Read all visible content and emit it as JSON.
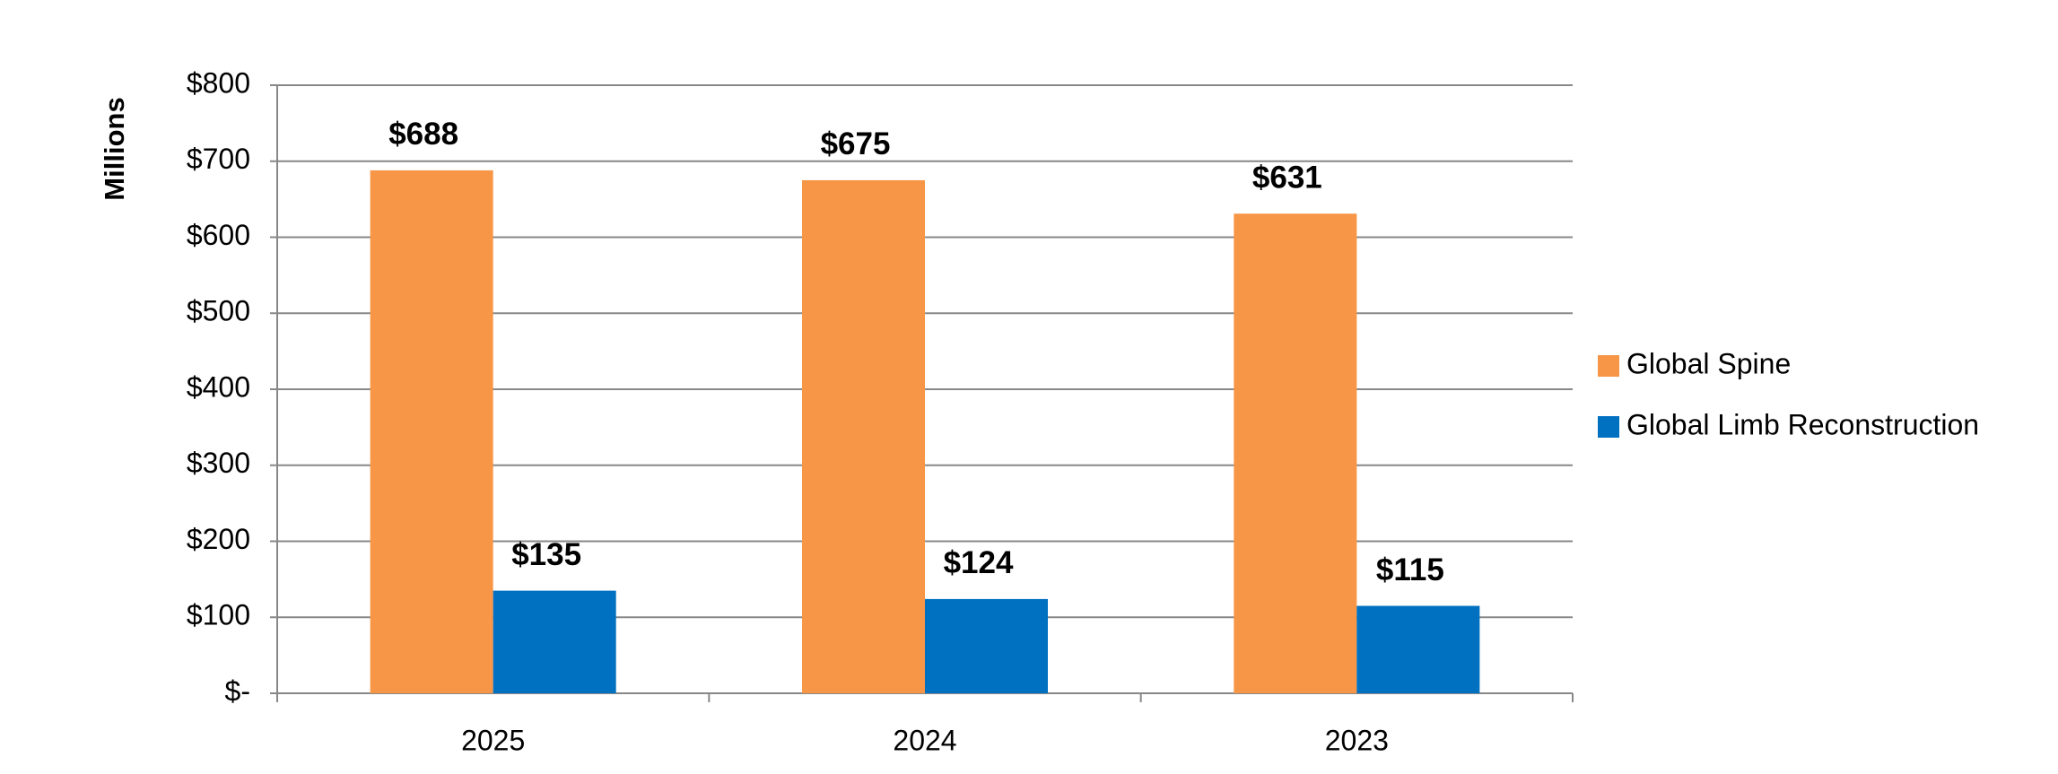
{
  "chart_data": {
    "type": "bar",
    "y_label": "Millions",
    "categories": [
      "2025",
      "2024",
      "2023"
    ],
    "series": [
      {
        "name": "Global Spine",
        "color": "#f79646",
        "values": [
          688,
          675,
          631
        ],
        "value_labels": [
          "$688",
          "$675",
          "$631"
        ]
      },
      {
        "name": "Global Limb Reconstruction",
        "color": "#0070c0",
        "values": [
          135,
          124,
          115
        ],
        "value_labels": [
          "$135",
          "$124",
          "$115"
        ]
      }
    ],
    "ylim": [
      0,
      800
    ],
    "yticks": [
      {
        "value": 0,
        "label": "$-"
      },
      {
        "value": 100,
        "label": "$100"
      },
      {
        "value": 200,
        "label": "$200"
      },
      {
        "value": 300,
        "label": "$300"
      },
      {
        "value": 400,
        "label": "$400"
      },
      {
        "value": 500,
        "label": "$500"
      },
      {
        "value": 600,
        "label": "$600"
      },
      {
        "value": 700,
        "label": "$700"
      },
      {
        "value": 800,
        "label": "$800"
      }
    ],
    "grid": true,
    "legend": "right"
  }
}
